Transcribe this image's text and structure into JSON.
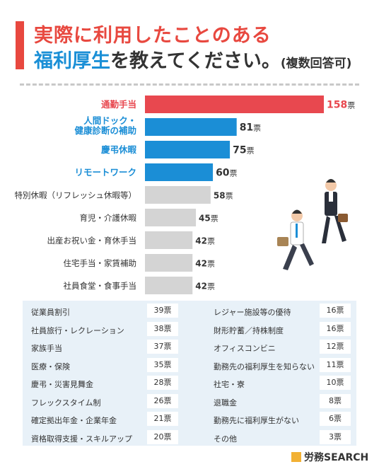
{
  "title": {
    "line1": "実際に利用したことのある",
    "line2_highlight": "福利厚生",
    "line2_rest": "を教えてください。",
    "line2_suffix": "(複数回答可)"
  },
  "chart_data": {
    "type": "bar",
    "orientation": "horizontal",
    "unit": "票",
    "categories": [
      "通勤手当",
      "人間ドック・\n健康診断の補助",
      "慶弔休暇",
      "リモートワーク",
      "特別休暇（リフレッシュ休暇等）",
      "育児・介護休暇",
      "出産お祝い金・育休手当",
      "住宅手当・家賃補助",
      "社員食堂・食事手当"
    ],
    "values": [
      158,
      81,
      75,
      60,
      58,
      45,
      42,
      42,
      42
    ],
    "colors": [
      "#e8484f",
      "#1b8ed6",
      "#1b8ed6",
      "#1b8ed6",
      "#d4d4d4",
      "#d4d4d4",
      "#d4d4d4",
      "#d4d4d4",
      "#d4d4d4"
    ],
    "label_colors": [
      "#e8484f",
      "#1b8ed6",
      "#1b8ed6",
      "#1b8ed6",
      "#333333",
      "#333333",
      "#333333",
      "#333333",
      "#333333"
    ]
  },
  "table": {
    "left": [
      {
        "label": "従業員割引",
        "value": "39票"
      },
      {
        "label": "社員旅行・レクレーション",
        "value": "38票"
      },
      {
        "label": "家族手当",
        "value": "37票"
      },
      {
        "label": "医療・保険",
        "value": "35票"
      },
      {
        "label": "慶弔・災害見舞金",
        "value": "28票"
      },
      {
        "label": "フレックスタイム制",
        "value": "26票"
      },
      {
        "label": "確定拠出年金・企業年金",
        "value": "21票"
      },
      {
        "label": "資格取得支援・スキルアップ",
        "value": "20票"
      }
    ],
    "right": [
      {
        "label": "レジャー施設等の優待",
        "value": "16票"
      },
      {
        "label": "財形貯蓄／持株制度",
        "value": "16票"
      },
      {
        "label": "オフィスコンビニ",
        "value": "12票"
      },
      {
        "label": "勤務先の福利厚生を知らない",
        "value": "11票"
      },
      {
        "label": "社宅・寮",
        "value": "10票"
      },
      {
        "label": "退職金",
        "value": "8票"
      },
      {
        "label": "勤務先に福利厚生がない",
        "value": "6票"
      },
      {
        "label": "その他",
        "value": "3票"
      }
    ]
  },
  "logo": {
    "brand": "労務SEARCH"
  },
  "colors": {
    "red": "#e8484f",
    "blue": "#1b8ed6",
    "gray": "#d4d4d4",
    "panel": "#e8f1f8"
  }
}
